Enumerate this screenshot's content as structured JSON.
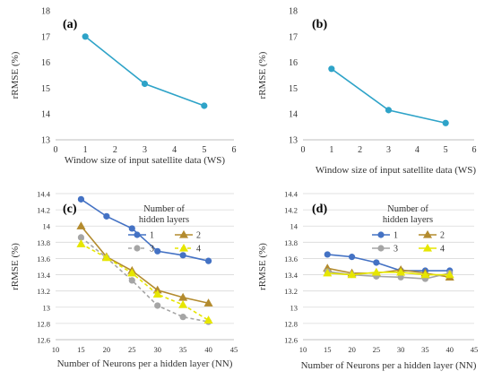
{
  "colors": {
    "series_1": "#4472C4",
    "series_2": "#B38B2E",
    "series_3": "#A5A5A5",
    "series_4": "#E6E600",
    "panel_ab": "#2EA3C8",
    "grid": "#D9D9D9"
  },
  "chart_data": [
    {
      "panel": "(a)",
      "type": "line",
      "xlabel": "Window size of input satellite data (WS)",
      "ylabel": "rRMSE (%)",
      "xlim": [
        0,
        6
      ],
      "ylim": [
        13,
        18
      ],
      "xticks": [
        "0",
        "1",
        "2",
        "3",
        "4",
        "5",
        "6"
      ],
      "yticks": [
        "13",
        "14",
        "15",
        "16",
        "17",
        "18"
      ],
      "grid": false,
      "series": [
        {
          "x": [
            1,
            3,
            5
          ],
          "values": [
            17.0,
            15.17,
            14.32
          ],
          "color": "#2EA3C8",
          "marker": "circle"
        }
      ]
    },
    {
      "panel": "(b)",
      "type": "line",
      "xlabel": "Window size of input satellite data (WS)",
      "ylabel": "rRMSE (%)",
      "xlim": [
        0,
        6
      ],
      "ylim": [
        13,
        18
      ],
      "xticks": [
        "0",
        "1",
        "2",
        "3",
        "4",
        "5",
        "6"
      ],
      "yticks": [
        "13",
        "14",
        "15",
        "16",
        "17",
        "18"
      ],
      "grid": false,
      "series": [
        {
          "x": [
            1,
            3,
            5
          ],
          "values": [
            15.75,
            14.15,
            13.65
          ],
          "color": "#2EA3C8",
          "marker": "circle"
        }
      ]
    },
    {
      "panel": "(c)",
      "type": "line",
      "xlabel": "Number of Neurons per a hidden layer (NN)",
      "ylabel": "rRMSE (%)",
      "xlim": [
        10,
        45
      ],
      "ylim": [
        12.6,
        14.4
      ],
      "xticks": [
        "10",
        "15",
        "20",
        "25",
        "30",
        "35",
        "40",
        "45"
      ],
      "yticks": [
        "12.6",
        "12.8",
        "13",
        "13.2",
        "13.4",
        "13.6",
        "13.8",
        "14",
        "14.2",
        "14.4"
      ],
      "grid": true,
      "legend": {
        "title": "Number of hidden layers",
        "title_lines": [
          "Number of",
          "hidden layers"
        ],
        "placement": "top-right"
      },
      "x": [
        15,
        20,
        25,
        30,
        35,
        40
      ],
      "series": [
        {
          "name": "1",
          "values": [
            14.33,
            14.12,
            13.97,
            13.69,
            13.64,
            13.57
          ],
          "color": "#4472C4",
          "marker": "circle",
          "dash": false
        },
        {
          "name": "2",
          "values": [
            14.0,
            13.62,
            13.45,
            13.21,
            13.12,
            13.05
          ],
          "color": "#B38B2E",
          "marker": "triangle",
          "dash": false
        },
        {
          "name": "3",
          "values": [
            13.86,
            13.61,
            13.33,
            13.02,
            12.88,
            12.82
          ],
          "color": "#A5A5A5",
          "marker": "circle",
          "dash": true
        },
        {
          "name": "4",
          "values": [
            13.78,
            13.61,
            13.42,
            13.16,
            13.03,
            12.84
          ],
          "color": "#E6E600",
          "marker": "triangle",
          "dash": true
        }
      ]
    },
    {
      "panel": "(d)",
      "type": "line",
      "xlabel": "Number of Neurons per a hidden layer (NN)",
      "ylabel": "rRMSE (%)",
      "xlim": [
        10,
        45
      ],
      "ylim": [
        12.6,
        14.4
      ],
      "xticks": [
        "10",
        "15",
        "20",
        "25",
        "30",
        "35",
        "40",
        "45"
      ],
      "yticks": [
        "12.6",
        "12.8",
        "13",
        "13.2",
        "13.4",
        "13.6",
        "13.8",
        "14",
        "14.2",
        "14.4"
      ],
      "grid": true,
      "legend": {
        "title": "Number of hidden layers",
        "title_lines": [
          "Number of",
          "hidden layers"
        ],
        "placement": "top-right"
      },
      "x": [
        15,
        20,
        25,
        30,
        35,
        40
      ],
      "series": [
        {
          "name": "1",
          "values": [
            13.65,
            13.62,
            13.55,
            13.45,
            13.45,
            13.45
          ],
          "color": "#4472C4",
          "marker": "circle",
          "dash": false
        },
        {
          "name": "2",
          "values": [
            13.48,
            13.42,
            13.42,
            13.46,
            13.42,
            13.37
          ],
          "color": "#B38B2E",
          "marker": "triangle",
          "dash": false
        },
        {
          "name": "3",
          "values": [
            13.44,
            13.4,
            13.38,
            13.37,
            13.35,
            13.42
          ],
          "color": "#A5A5A5",
          "marker": "circle",
          "dash": false
        },
        {
          "name": "4",
          "values": [
            13.42,
            13.4,
            13.43,
            13.43,
            13.4,
            13.4
          ],
          "color": "#E6E600",
          "marker": "triangle",
          "dash": false
        }
      ]
    }
  ]
}
